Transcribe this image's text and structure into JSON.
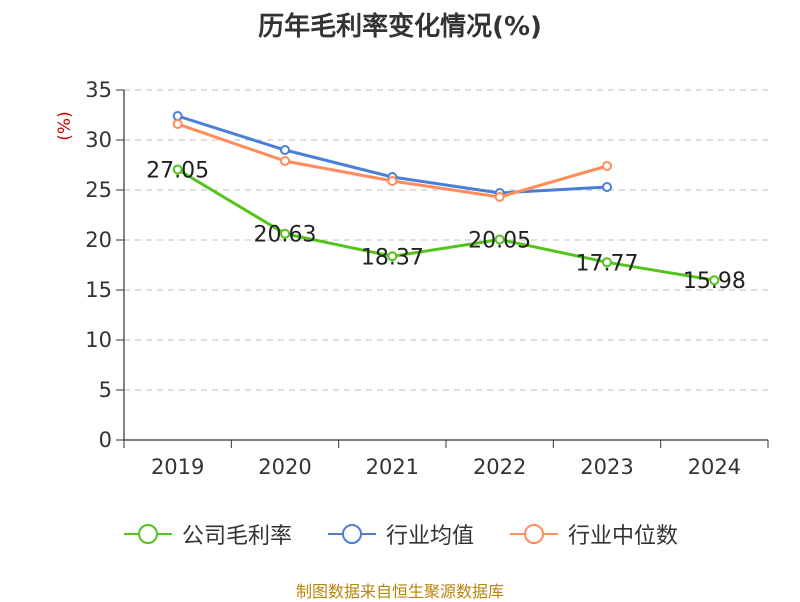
{
  "chart_data": {
    "type": "line",
    "title": "历年毛利率变化情况(%)",
    "ylabel": "(%)",
    "xlabel": "",
    "categories": [
      "2019",
      "2020",
      "2021",
      "2022",
      "2023",
      "2024"
    ],
    "ylim": [
      0,
      35
    ],
    "yticks": [
      "0",
      "5",
      "10",
      "15",
      "20",
      "25",
      "30",
      "35"
    ],
    "grid": true,
    "legend_position": "bottom",
    "series": [
      {
        "name": "公司毛利率",
        "color": "#52c41a",
        "values": [
          27.05,
          20.63,
          18.37,
          20.05,
          17.77,
          15.98
        ],
        "labels": [
          "27.05",
          "20.63",
          "18.37",
          "20.05",
          "17.77",
          "15.98"
        ]
      },
      {
        "name": "行业均值",
        "color": "#4a7fd8",
        "values": [
          32.4,
          29.0,
          26.3,
          24.7,
          25.3,
          null
        ]
      },
      {
        "name": "行业中位数",
        "color": "#ff8c5a",
        "values": [
          31.6,
          27.9,
          25.9,
          24.3,
          27.4,
          null
        ]
      }
    ]
  },
  "source_text": "制图数据来自恒生聚源数据库"
}
